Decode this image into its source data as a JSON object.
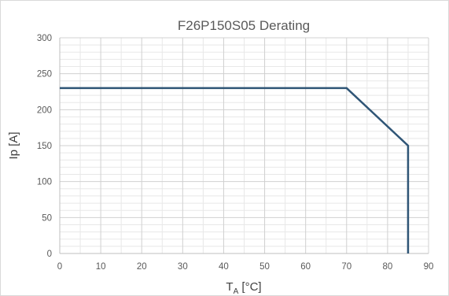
{
  "chart_data": {
    "type": "line",
    "title": "F26P150S05 Derating",
    "xlabel": {
      "main": "T",
      "subscript": "A",
      "unit": " [°C]"
    },
    "ylabel": "Ip [A]",
    "xlim": [
      0,
      90
    ],
    "ylim": [
      0,
      300
    ],
    "x_ticks": [
      0,
      10,
      20,
      30,
      40,
      50,
      60,
      70,
      80,
      90
    ],
    "y_ticks": [
      0,
      50,
      100,
      150,
      200,
      250,
      300
    ],
    "x_minor_step": 5,
    "y_minor_step": 10,
    "grid": true,
    "series": [
      {
        "points": [
          [
            0,
            230
          ],
          [
            70,
            230
          ],
          [
            85,
            150
          ],
          [
            85,
            0
          ]
        ],
        "color": "#2f5576"
      }
    ],
    "grid_major_color": "#d0d0d0",
    "grid_minor_color": "#e8e8e8",
    "axis_color": "#bfbfbf"
  }
}
